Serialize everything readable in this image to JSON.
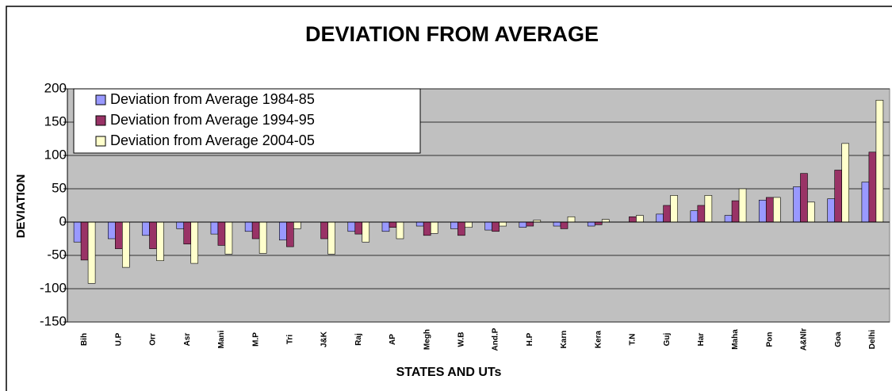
{
  "chart_data": {
    "type": "bar",
    "title": "DEVIATION FROM AVERAGE",
    "x_label": "STATES AND UTs",
    "y_label": "DEVIATION",
    "categories": [
      "Bih",
      "U.P",
      "Orr",
      "Asr",
      "Mani",
      "M.P",
      "Tri",
      "J&K",
      "Raj",
      "AP",
      "Megh",
      "W.B",
      "And.P",
      "H.P",
      "Karn",
      "Kera",
      "T.N",
      "Guj",
      "Har",
      "Maha",
      "Pon",
      "A&Nlr",
      "Goa",
      "Delhi"
    ],
    "series": [
      {
        "name": "Deviation from Average 1984-85",
        "color": "#9999ff",
        "values": [
          -30,
          -25,
          -20,
          -10,
          -18,
          -14,
          -27,
          0,
          -14,
          -14,
          -6,
          -10,
          -12,
          -8,
          -6,
          -6,
          0,
          12,
          17,
          10,
          33,
          53,
          35,
          60
        ]
      },
      {
        "name": "Deviation from Average 1994-95",
        "color": "#993366",
        "values": [
          -57,
          -40,
          -40,
          -33,
          -35,
          -25,
          -37,
          -25,
          -18,
          -8,
          -20,
          -20,
          -14,
          -6,
          -10,
          -4,
          8,
          25,
          25,
          32,
          37,
          73,
          78,
          105
        ]
      },
      {
        "name": "Deviation from Average 2004-05",
        "color": "#ffffcc",
        "values": [
          -92,
          -68,
          -58,
          -62,
          -48,
          -47,
          -10,
          -48,
          -30,
          -25,
          -17,
          -8,
          -6,
          3,
          8,
          4,
          10,
          40,
          40,
          50,
          37,
          30,
          118,
          183
        ]
      }
    ],
    "ylim": [
      -150,
      200
    ],
    "yticks": [
      -150,
      -100,
      -50,
      0,
      50,
      100,
      150,
      200
    ],
    "grid": true,
    "legend": "upper left"
  }
}
